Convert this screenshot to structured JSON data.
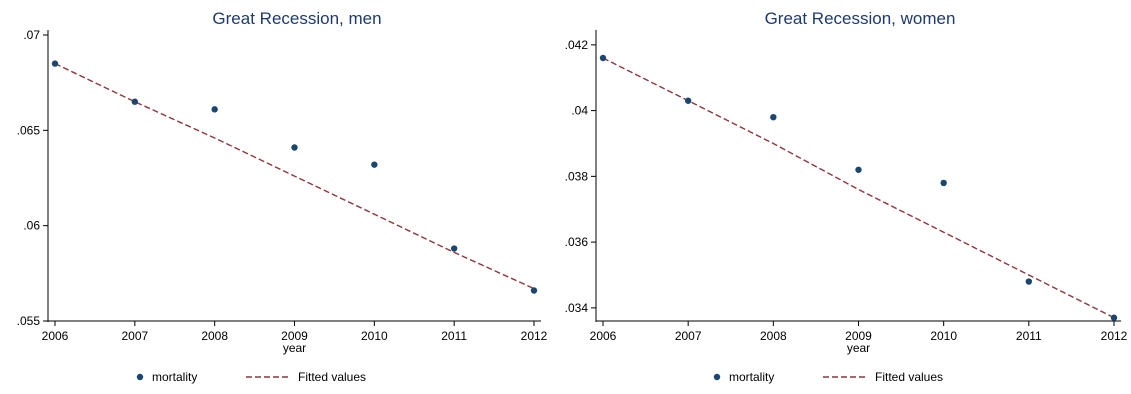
{
  "chart_data": [
    {
      "type": "scatter",
      "title": "Great Recession, men",
      "xlabel": "year",
      "ylabel": "",
      "x": [
        2006,
        2007,
        2008,
        2009,
        2010,
        2011,
        2012
      ],
      "xlim": [
        2006,
        2012
      ],
      "ylim": [
        0.055,
        0.07
      ],
      "yticks": [
        0.055,
        0.06,
        0.065,
        0.07
      ],
      "ytick_labels": [
        ".055",
        ".06",
        ".065",
        ".07"
      ],
      "xtick_labels": [
        "2006",
        "2007",
        "2008",
        "2009",
        "2010",
        "2011",
        "2012"
      ],
      "grid": false,
      "legend_position": "bottom",
      "series": [
        {
          "name": "mortality",
          "type": "scatter",
          "color": "#1a476f",
          "values": [
            0.0685,
            0.0665,
            0.0661,
            0.0641,
            0.0632,
            0.0588,
            0.0566
          ]
        },
        {
          "name": "Fitted values",
          "type": "line",
          "style": "dashed",
          "color": "#90353b",
          "values": [
            0.0685,
            0.0665,
            0.0646,
            0.0626,
            0.0606,
            0.0586,
            0.0567
          ]
        }
      ]
    },
    {
      "type": "scatter",
      "title": "Great Recession, women",
      "xlabel": "year",
      "ylabel": "",
      "x": [
        2006,
        2007,
        2008,
        2009,
        2010,
        2011,
        2012
      ],
      "xlim": [
        2006,
        2012
      ],
      "ylim": [
        0.0336,
        0.0423
      ],
      "yticks": [
        0.034,
        0.036,
        0.038,
        0.04,
        0.042
      ],
      "ytick_labels": [
        ".034",
        ".036",
        ".038",
        ".04",
        ".042"
      ],
      "xtick_labels": [
        "2006",
        "2007",
        "2008",
        "2009",
        "2010",
        "2011",
        "2012"
      ],
      "grid": false,
      "legend_position": "bottom",
      "series": [
        {
          "name": "mortality",
          "type": "scatter",
          "color": "#1a476f",
          "values": [
            0.0416,
            0.0403,
            0.0398,
            0.0382,
            0.0378,
            0.0348,
            0.0337
          ]
        },
        {
          "name": "Fitted values",
          "type": "line",
          "style": "dashed",
          "color": "#90353b",
          "values": [
            0.0416,
            0.0403,
            0.039,
            0.0376,
            0.0363,
            0.035,
            0.0337
          ]
        }
      ]
    }
  ]
}
